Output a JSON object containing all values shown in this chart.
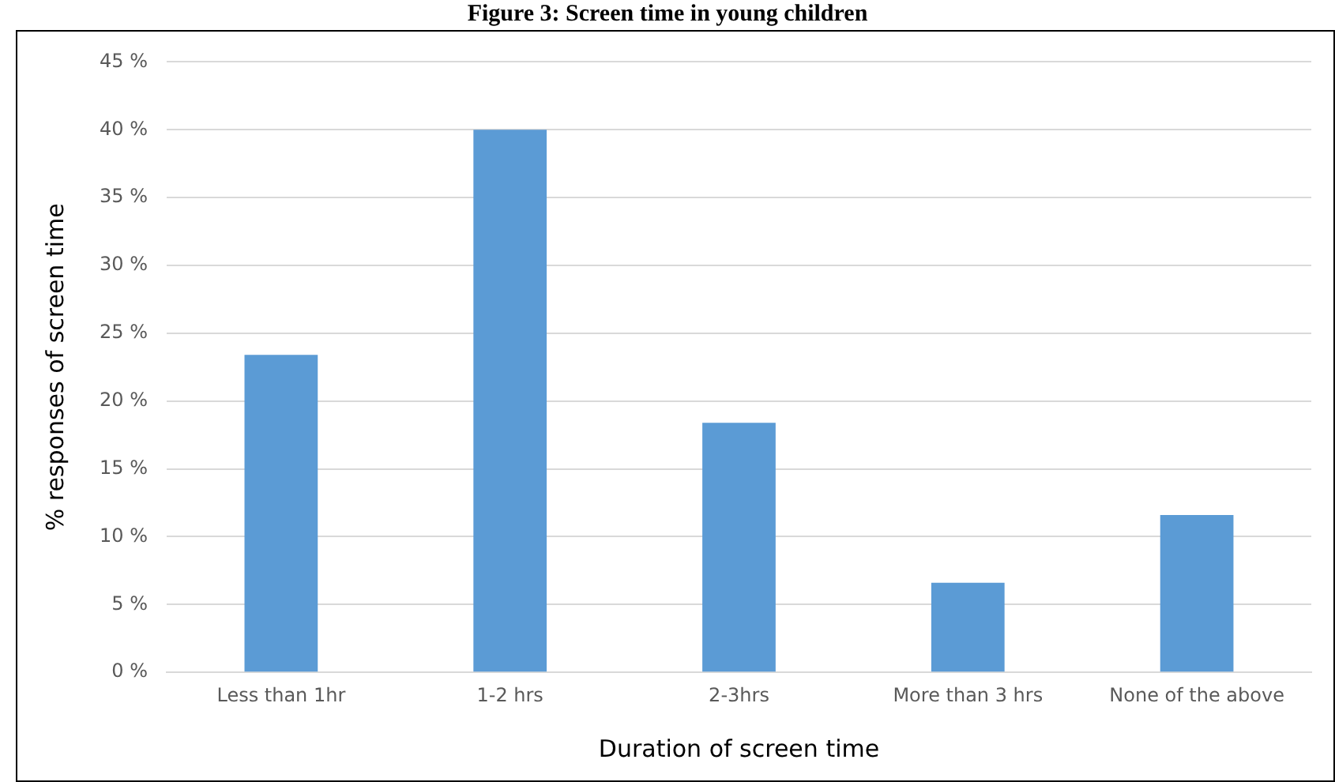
{
  "chart_data": {
    "type": "bar",
    "title": "Figure 3: Screen time in young children",
    "xlabel": "Duration of screen time",
    "ylabel": "% responses of screen time",
    "categories": [
      "Less than 1hr",
      "1-2 hrs",
      "2-3hrs",
      "More than 3 hrs",
      "None of the above"
    ],
    "values": [
      23.4,
      40,
      18.4,
      6.6,
      11.6
    ],
    "color": "#5b9bd5",
    "ylim": [
      0,
      45
    ],
    "yticks": [
      {
        "value": 0,
        "label": "0 %"
      },
      {
        "value": 5,
        "label": "5 %"
      },
      {
        "value": 10,
        "label": "10 %"
      },
      {
        "value": 15,
        "label": "15 %"
      },
      {
        "value": 20,
        "label": "20 %"
      },
      {
        "value": 25,
        "label": "25 %"
      },
      {
        "value": 30,
        "label": "30 %"
      },
      {
        "value": 35,
        "label": "35 %"
      },
      {
        "value": 40,
        "label": "40 %"
      },
      {
        "value": 45,
        "label": "45 %"
      }
    ],
    "grid": "y"
  }
}
